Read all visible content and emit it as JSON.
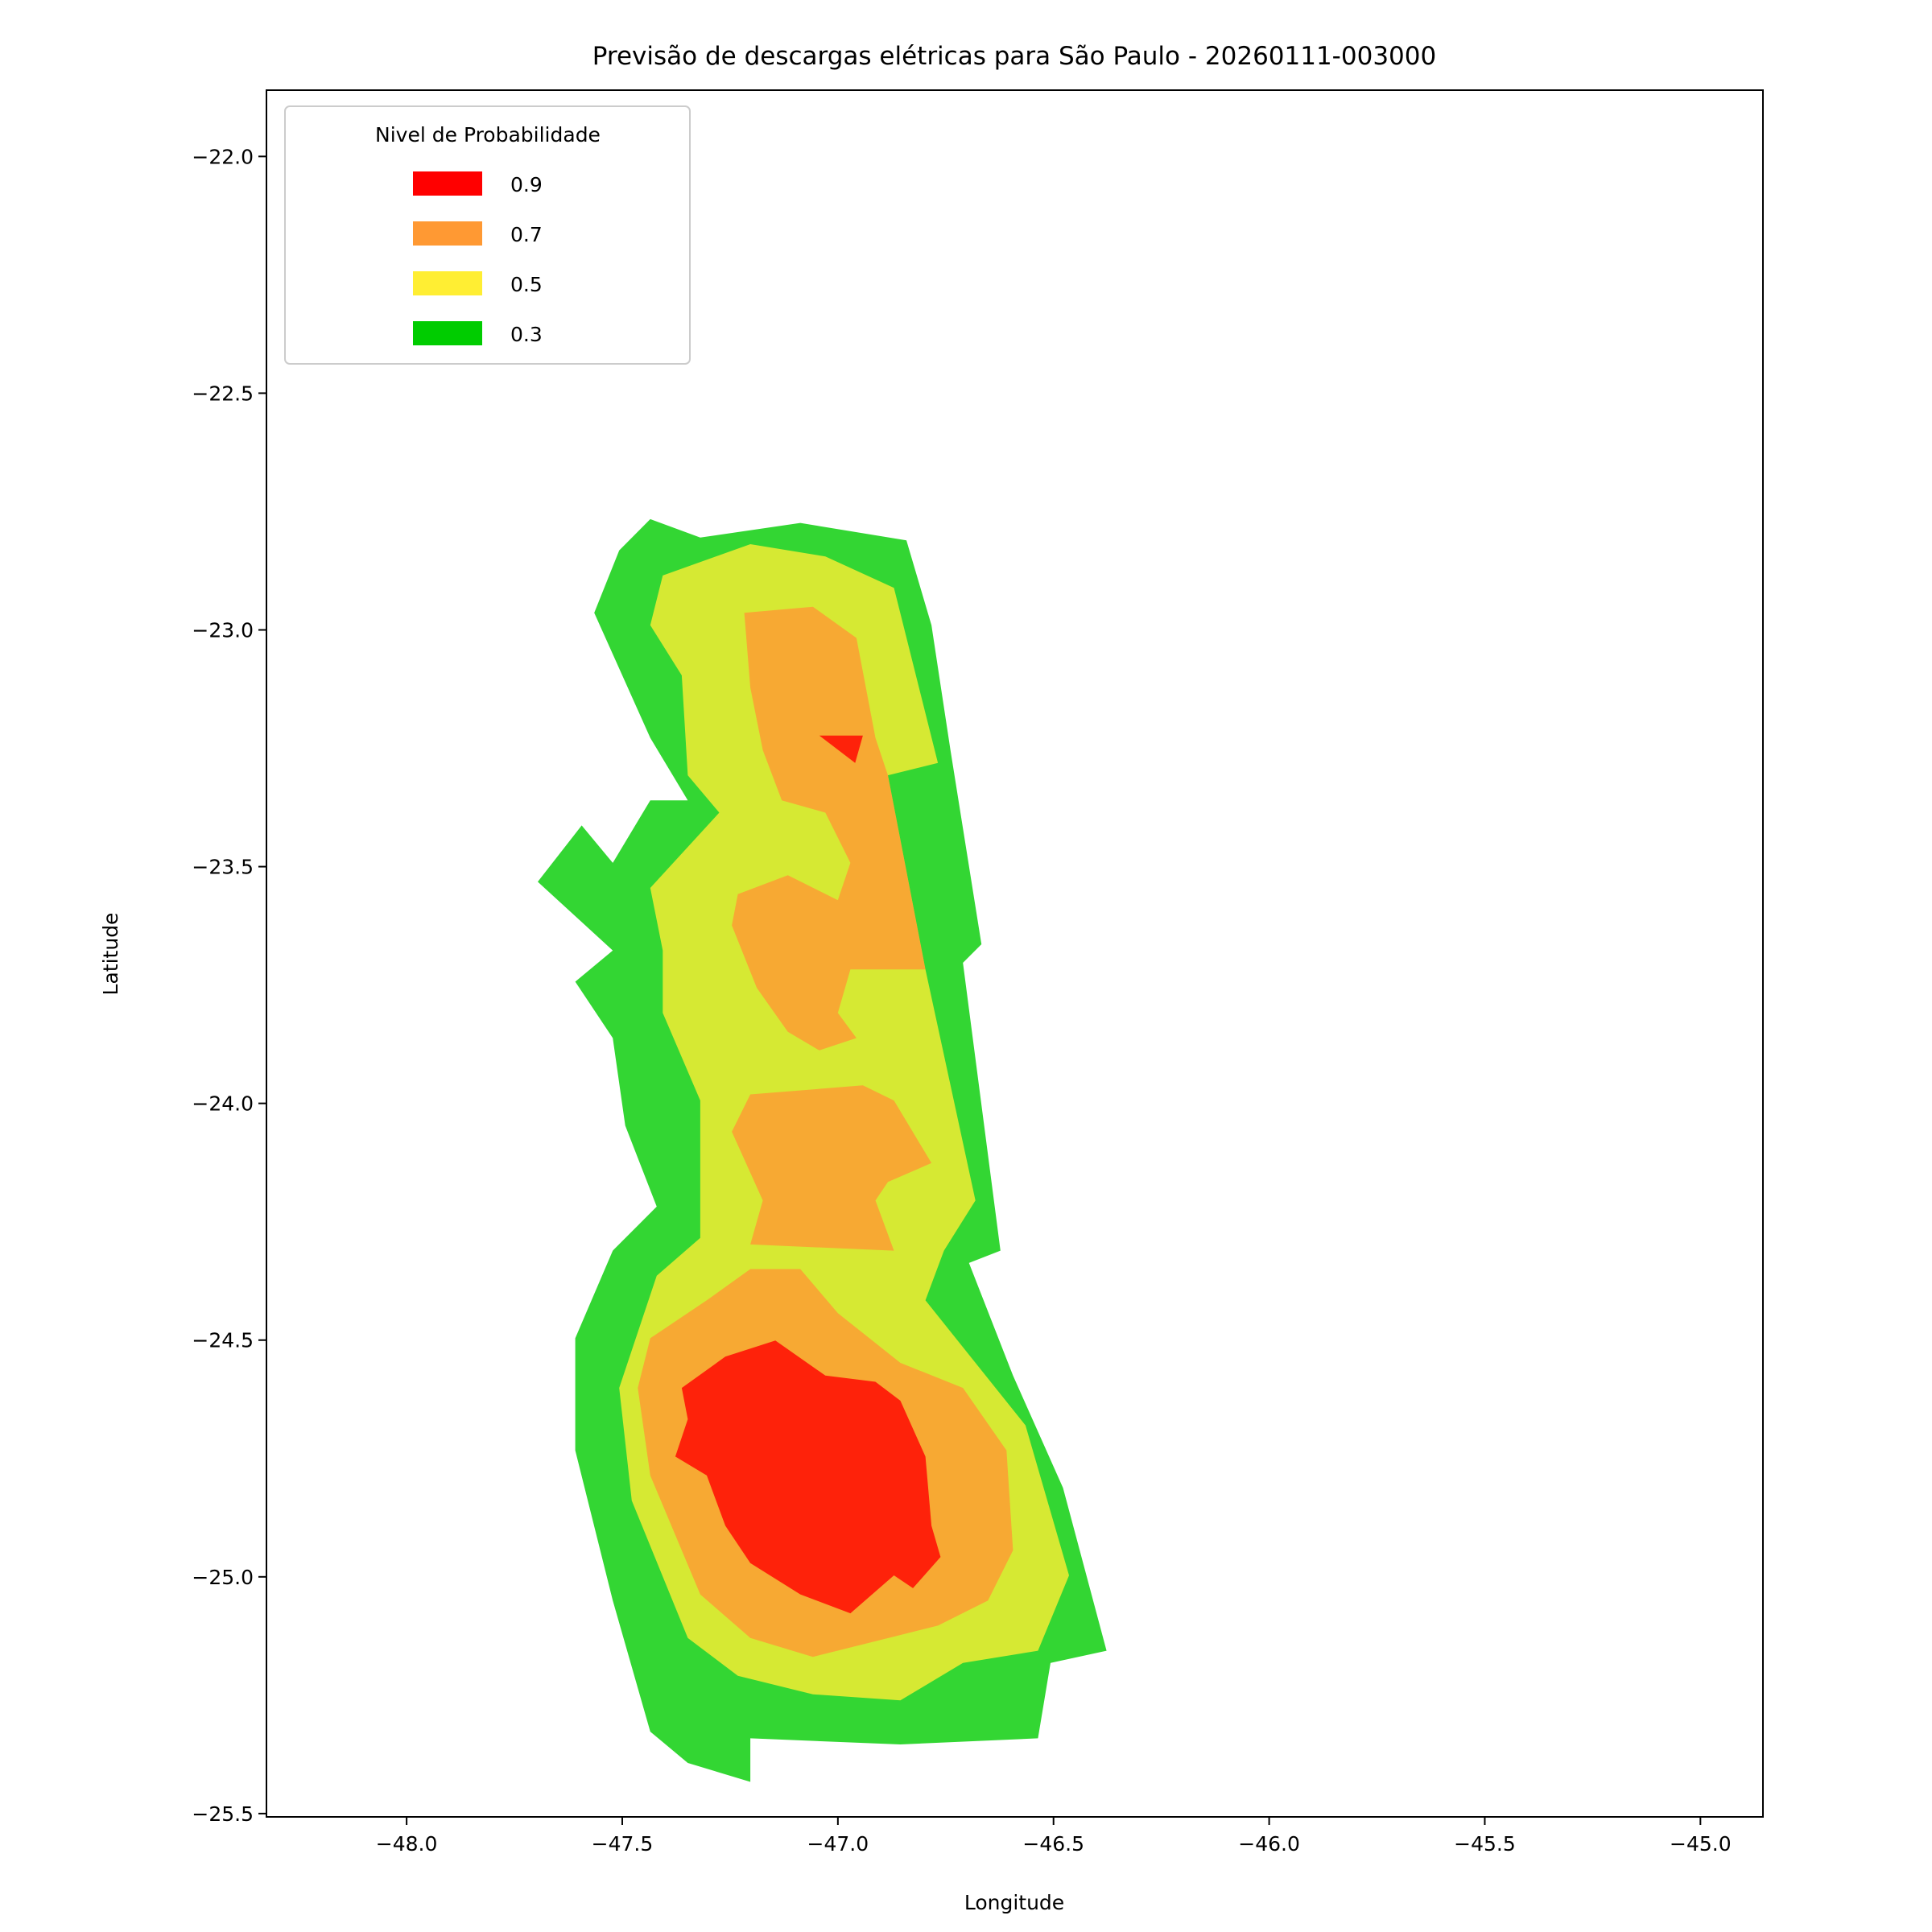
{
  "chart_data": {
    "type": "contour",
    "title": "Previsão de descargas elétricas para São Paulo - 20260111-003000",
    "x_label": "Longitude",
    "y_label": "Latitude",
    "legend_title": "Nivel de Probabilidade",
    "legend": "upper left",
    "xlim": [
      -48.325,
      -44.855
    ],
    "ylim": [
      -25.507,
      -21.86
    ],
    "xticks": [
      {
        "value": -48.0,
        "label": "−48.0"
      },
      {
        "value": -47.5,
        "label": "−47.5"
      },
      {
        "value": -47.0,
        "label": "−47.0"
      },
      {
        "value": -46.5,
        "label": "−46.5"
      },
      {
        "value": -46.0,
        "label": "−46.0"
      },
      {
        "value": -45.5,
        "label": "−45.5"
      },
      {
        "value": -45.0,
        "label": "−45.0"
      }
    ],
    "yticks": [
      {
        "value": -22.0,
        "label": "−22.0"
      },
      {
        "value": -22.5,
        "label": "−22.5"
      },
      {
        "value": -23.0,
        "label": "−23.0"
      },
      {
        "value": -23.5,
        "label": "−23.5"
      },
      {
        "value": -24.0,
        "label": "−24.0"
      },
      {
        "value": -24.5,
        "label": "−24.5"
      },
      {
        "value": -25.0,
        "label": "−25.0"
      },
      {
        "value": -25.5,
        "label": "−25.5"
      }
    ],
    "series": [
      {
        "name": "0.9",
        "color": "#ff0000",
        "regions": [
          {
            "x": [
              -47.043,
              -46.942,
              -46.96
            ],
            "y": [
              -23.223,
              -23.223,
              -23.281
            ]
          },
          {
            "x": [
              -47.362,
              -47.261,
              -47.145,
              -47.029,
              -46.913,
              -46.855,
              -46.797,
              -46.783,
              -46.762,
              -46.826,
              -46.87,
              -46.971,
              -47.087,
              -47.203,
              -47.261,
              -47.304,
              -47.377,
              -47.348
            ],
            "y": [
              -24.601,
              -24.535,
              -24.501,
              -24.575,
              -24.588,
              -24.628,
              -24.746,
              -24.892,
              -24.958,
              -25.024,
              -24.997,
              -25.077,
              -25.037,
              -24.971,
              -24.892,
              -24.786,
              -24.746,
              -24.667
            ]
          }
        ]
      },
      {
        "name": "0.7",
        "color": "#ff9933",
        "regions": [
          {
            "x": [
              -47.217,
              -47.058,
              -46.957,
              -46.913,
              -46.884,
              -46.797,
              -46.971,
              -47.0,
              -46.957,
              -47.043,
              -47.116,
              -47.188,
              -47.246,
              -47.232,
              -47.116,
              -47.0,
              -46.971,
              -47.029,
              -47.13,
              -47.174,
              -47.203
            ],
            "y": [
              -22.964,
              -22.951,
              -23.017,
              -23.228,
              -23.307,
              -23.717,
              -23.717,
              -23.809,
              -23.862,
              -23.888,
              -23.849,
              -23.756,
              -23.624,
              -23.558,
              -23.518,
              -23.571,
              -23.492,
              -23.386,
              -23.36,
              -23.254,
              -23.122
            ]
          },
          {
            "x": [
              -47.203,
              -46.942,
              -46.87,
              -46.783,
              -46.884,
              -46.913,
              -46.87,
              -47.203,
              -47.174,
              -47.246
            ],
            "y": [
              -23.981,
              -23.962,
              -23.994,
              -24.126,
              -24.166,
              -24.205,
              -24.311,
              -24.298,
              -24.205,
              -24.06
            ]
          },
          {
            "x": [
              -47.304,
              -47.203,
              -47.087,
              -47.0,
              -46.855,
              -46.71,
              -46.609,
              -46.594,
              -46.652,
              -46.768,
              -47.058,
              -47.203,
              -47.319,
              -47.435,
              -47.464,
              -47.435
            ],
            "y": [
              -24.416,
              -24.35,
              -24.35,
              -24.443,
              -24.548,
              -24.601,
              -24.733,
              -24.944,
              -25.05,
              -25.103,
              -25.169,
              -25.129,
              -25.037,
              -24.786,
              -24.601,
              -24.496
            ]
          }
        ]
      },
      {
        "name": "0.5",
        "color": "#ffee33",
        "regions": [
          {
            "x": [
              -47.406,
              -47.203,
              -47.029,
              -46.87,
              -46.768,
              -46.884,
              -46.797,
              -46.681,
              -46.754,
              -46.797,
              -46.565,
              -46.464,
              -46.536,
              -46.71,
              -46.855,
              -47.058,
              -47.232,
              -47.348,
              -47.478,
              -47.507,
              -47.42,
              -47.319,
              -47.319,
              -47.406,
              -47.406,
              -47.435,
              -47.275,
              -47.348,
              -47.362,
              -47.435
            ],
            "y": [
              -22.885,
              -22.819,
              -22.845,
              -22.911,
              -23.281,
              -23.307,
              -23.717,
              -24.205,
              -24.311,
              -24.416,
              -24.68,
              -24.997,
              -25.156,
              -25.182,
              -25.261,
              -25.248,
              -25.209,
              -25.129,
              -24.839,
              -24.601,
              -24.364,
              -24.284,
              -23.994,
              -23.809,
              -23.677,
              -23.545,
              -23.386,
              -23.307,
              -23.096,
              -22.99
            ]
          }
        ]
      },
      {
        "name": "0.3",
        "color": "#00cc00",
        "regions": [
          {
            "x": [
              -47.435,
              -47.319,
              -47.087,
              -46.841,
              -46.783,
              -46.739,
              -46.667,
              -46.71,
              -46.623,
              -46.696,
              -46.594,
              -46.478,
              -46.377,
              -46.507,
              -46.536,
              -46.855,
              -47.203,
              -47.203,
              -47.348,
              -47.435,
              -47.522,
              -47.609,
              -47.609,
              -47.522,
              -47.42,
              -47.493,
              -47.522,
              -47.609,
              -47.522,
              -47.696,
              -47.594,
              -47.522,
              -47.435,
              -47.348,
              -47.435,
              -47.565,
              -47.507
            ],
            "y": [
              -22.766,
              -22.805,
              -22.774,
              -22.811,
              -22.99,
              -23.254,
              -23.664,
              -23.703,
              -24.311,
              -24.337,
              -24.575,
              -24.812,
              -25.156,
              -25.182,
              -25.341,
              -25.354,
              -25.341,
              -25.433,
              -25.393,
              -25.327,
              -25.05,
              -24.733,
              -24.496,
              -24.311,
              -24.218,
              -24.047,
              -23.862,
              -23.743,
              -23.677,
              -23.532,
              -23.413,
              -23.492,
              -23.36,
              -23.36,
              -23.228,
              -22.964,
              -22.832
            ]
          }
        ]
      }
    ]
  }
}
